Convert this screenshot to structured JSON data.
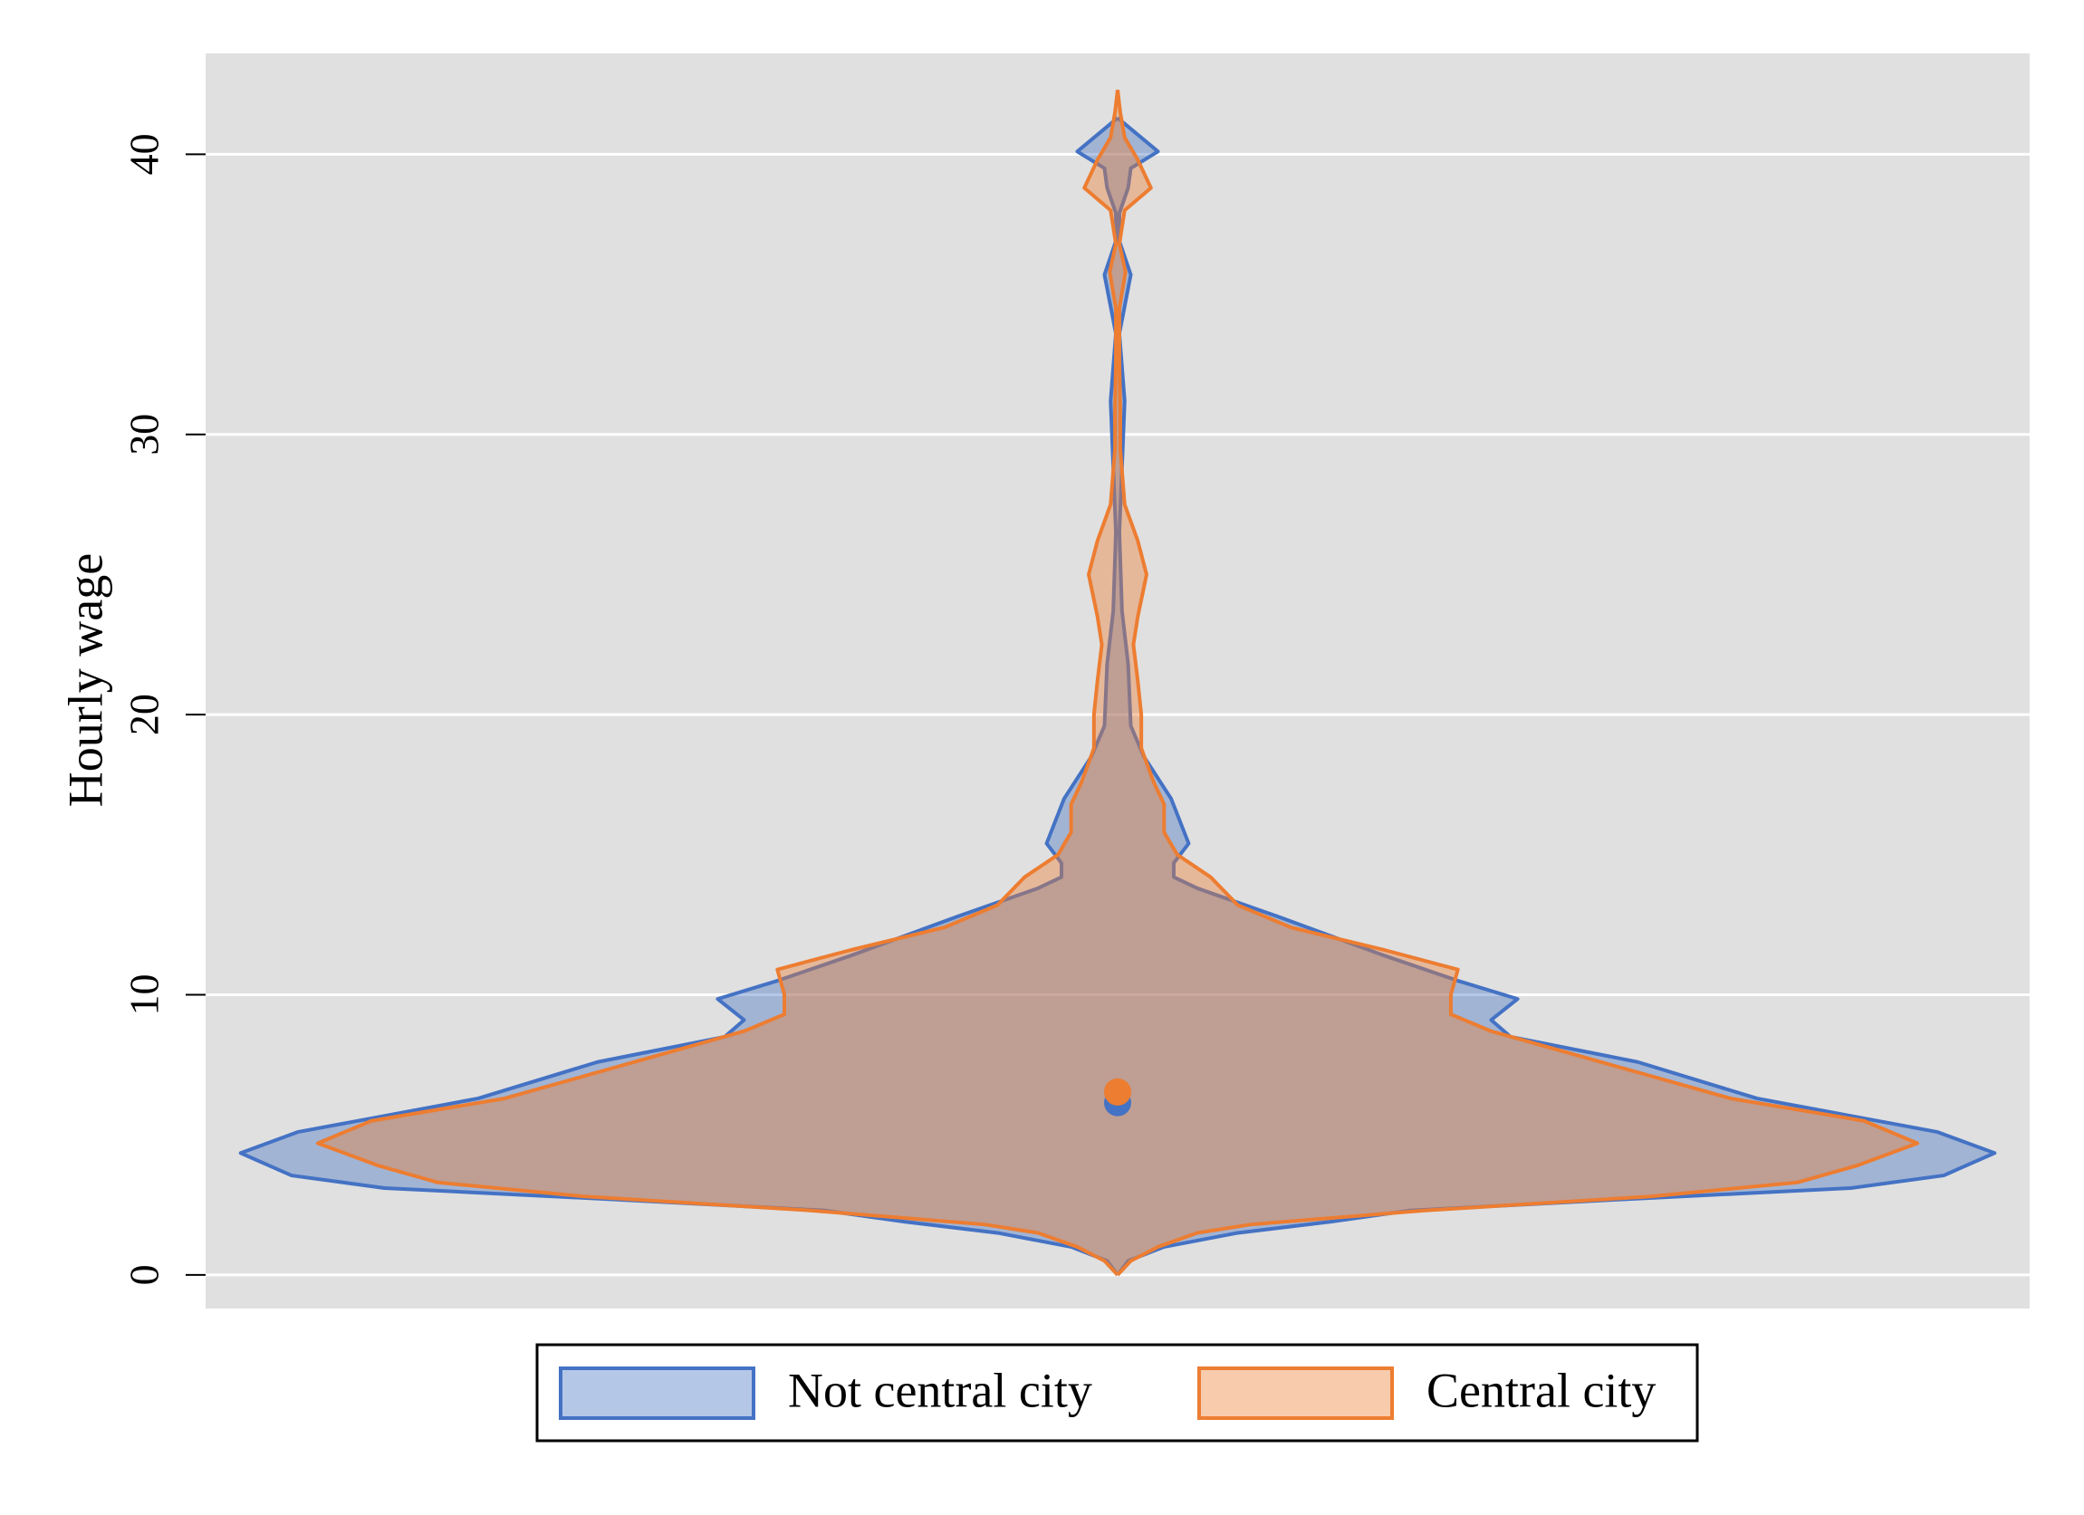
{
  "chart_data": {
    "type": "violin",
    "ylabel": "Hourly wage",
    "ylim": [
      -1.2,
      43.6
    ],
    "yticks": [
      0,
      10,
      20,
      30,
      40
    ],
    "xlim": [
      -1.04,
      1.04
    ],
    "grid": true,
    "legend": "bottom",
    "series": [
      {
        "name": "Not central city",
        "color": "#4472c4",
        "median": 6.15,
        "y": [
          0,
          0.5,
          1,
          1.5,
          1.9,
          2.3,
          2.7,
          3.1,
          3.55,
          4.35,
          5.1,
          6.3,
          7.6,
          8.5,
          9.1,
          9.85,
          10.5,
          11.4,
          12.8,
          13.8,
          14.2,
          14.7,
          15.4,
          17,
          18.5,
          19.6,
          21.8,
          23.7,
          26.5,
          31.2,
          33.6,
          35.7,
          36.9,
          37.9,
          38.8,
          39.5,
          40.1,
          41.3
        ],
        "density": [
          0,
          0.012,
          0.053,
          0.137,
          0.243,
          0.334,
          0.578,
          0.836,
          0.942,
          1,
          0.935,
          0.729,
          0.593,
          0.448,
          0.426,
          0.456,
          0.388,
          0.304,
          0.182,
          0.091,
          0.064,
          0.064,
          0.081,
          0.061,
          0.03,
          0.015,
          0.012,
          0.005,
          0.002,
          0.008,
          0.002,
          0.015,
          0.002,
          0.002,
          0.012,
          0.015,
          0.046,
          0
        ]
      },
      {
        "name": "Central city",
        "color": "#ed7d31",
        "median": 6.53,
        "y": [
          0,
          0.5,
          1,
          1.5,
          1.8,
          2.3,
          2.8,
          3.3,
          3.9,
          4.7,
          5.5,
          6.3,
          7.1,
          7.9,
          8.7,
          9.3,
          10,
          10.9,
          11.6,
          12.4,
          13.2,
          14.2,
          15,
          15.8,
          16.8,
          17.6,
          18.8,
          20,
          21.2,
          22.5,
          23.5,
          25,
          26.2,
          27.5,
          29.5,
          31,
          32.5,
          34.5,
          35.8,
          36.8,
          38,
          38.8,
          39.8,
          40.6,
          41.5,
          42.3
        ],
        "density": [
          0,
          0.015,
          0.046,
          0.091,
          0.152,
          0.35,
          0.608,
          0.775,
          0.843,
          0.912,
          0.851,
          0.699,
          0.608,
          0.517,
          0.426,
          0.38,
          0.38,
          0.388,
          0.304,
          0.198,
          0.137,
          0.106,
          0.068,
          0.053,
          0.053,
          0.041,
          0.027,
          0.027,
          0.023,
          0.018,
          0.023,
          0.033,
          0.023,
          0.008,
          0.003,
          0.003,
          0.002,
          0.002,
          0.009,
          0.002,
          0.008,
          0.038,
          0.023,
          0.008,
          0.003,
          0
        ]
      }
    ]
  }
}
